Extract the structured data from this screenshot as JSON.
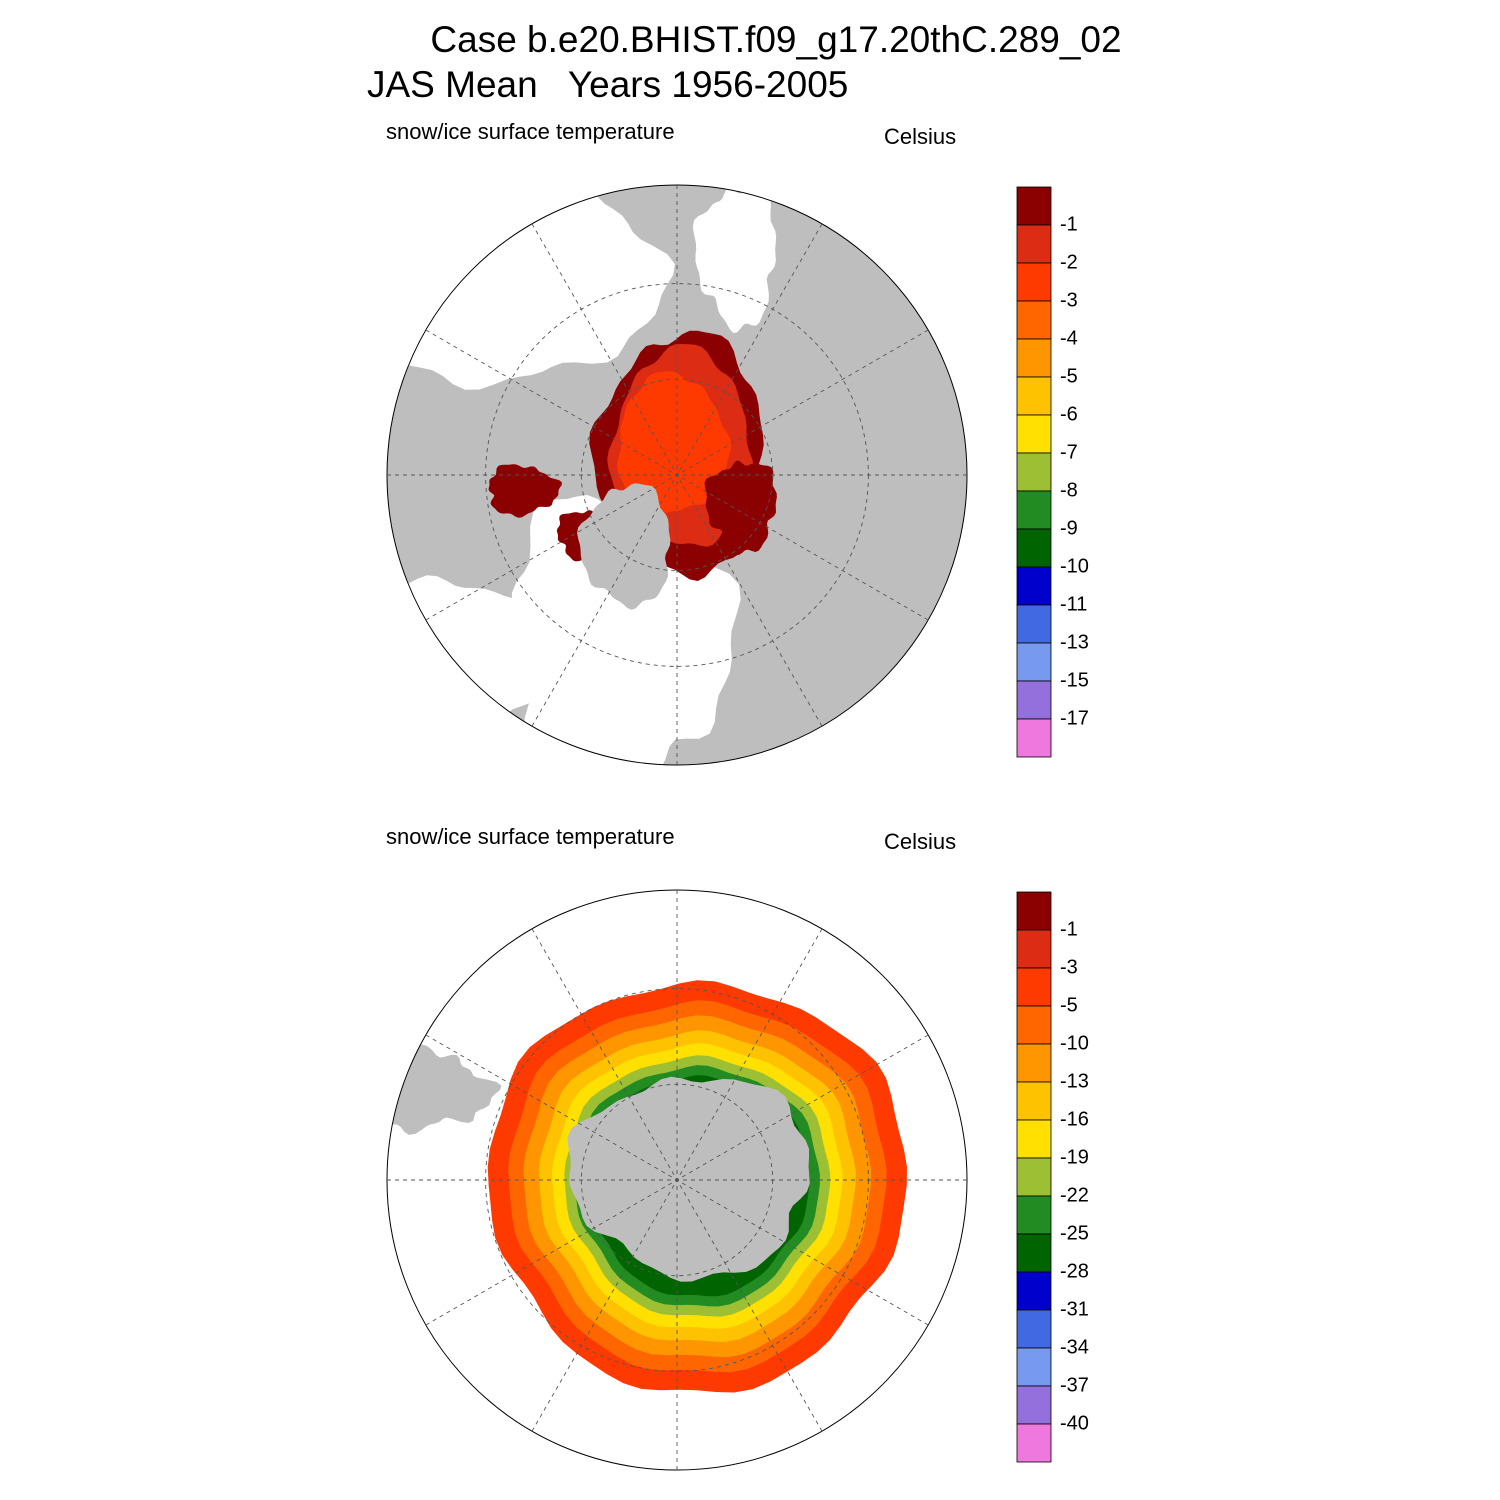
{
  "title": [
    "Case b.e20.BHIST.f09_g17.20thC.289_02",
    "JAS Mean   Years 1956-2005"
  ],
  "panels": [
    {
      "left_title": "snow/ice surface temperature",
      "units": "Celsius",
      "colorbar": {
        "colors": [
          "#8b0000",
          "#dd2c14",
          "#ff3a00",
          "#ff6600",
          "#ff9600",
          "#ffc200",
          "#ffe000",
          "#9cbf34",
          "#228b22",
          "#006400",
          "#0000cd",
          "#4169e1",
          "#7799f0",
          "#9370db",
          "#ee78dd"
        ],
        "labels": [
          -1,
          -2,
          -3,
          -4,
          -5,
          -6,
          -7,
          -8,
          -9,
          -10,
          -11,
          -13,
          -15,
          -17
        ]
      }
    },
    {
      "left_title": "snow/ice surface temperature",
      "units": "Celsius",
      "colorbar": {
        "colors": [
          "#8b0000",
          "#dd2c14",
          "#ff3a00",
          "#ff6600",
          "#ff9600",
          "#ffc200",
          "#ffe000",
          "#9cbf34",
          "#228b22",
          "#006400",
          "#0000cd",
          "#4169e1",
          "#7799f0",
          "#9370db",
          "#ee78dd"
        ],
        "labels": [
          -1,
          -3,
          -5,
          -10,
          -13,
          -16,
          -19,
          -22,
          -25,
          -28,
          -31,
          -34,
          -37,
          -40
        ]
      }
    }
  ]
}
